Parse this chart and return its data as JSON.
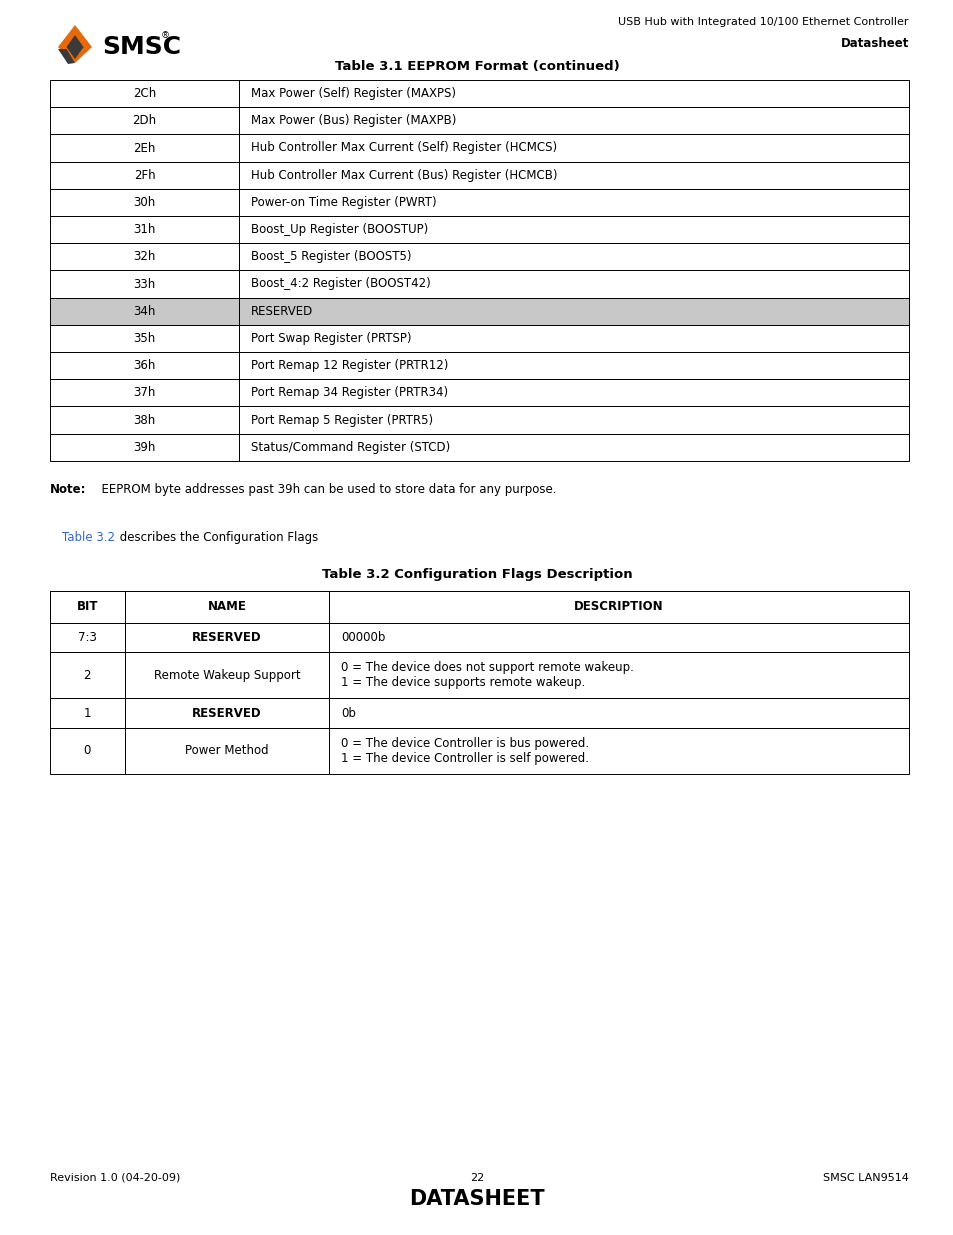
{
  "page_width": 9.54,
  "page_height": 12.35,
  "bg_color": "#ffffff",
  "header_subtitle": "USB Hub with Integrated 10/100 Ethernet Controller",
  "header_label": "Datasheet",
  "table1_title": "Table 3.1 EEPROM Format (continued)",
  "table1_rows": [
    [
      "2Ch",
      "Max Power (Self) Register (MAXPS)"
    ],
    [
      "2Dh",
      "Max Power (Bus) Register (MAXPB)"
    ],
    [
      "2Eh",
      "Hub Controller Max Current (Self) Register (HCMCS)"
    ],
    [
      "2Fh",
      "Hub Controller Max Current (Bus) Register (HCMCB)"
    ],
    [
      "30h",
      "Power-on Time Register (PWRT)"
    ],
    [
      "31h",
      "Boost_Up Register (BOOSTUP)"
    ],
    [
      "32h",
      "Boost_5 Register (BOOST5)"
    ],
    [
      "33h",
      "Boost_4:2 Register (BOOST42)"
    ],
    [
      "34h",
      "RESERVED"
    ],
    [
      "35h",
      "Port Swap Register (PRTSP)"
    ],
    [
      "36h",
      "Port Remap 12 Register (PRTR12)"
    ],
    [
      "37h",
      "Port Remap 34 Register (PRTR34)"
    ],
    [
      "38h",
      "Port Remap 5 Register (PRTR5)"
    ],
    [
      "39h",
      "Status/Command Register (STCD)"
    ]
  ],
  "reserved_row_index": 8,
  "reserved_bg": "#c8c8c8",
  "note_bold": "Note:",
  "note_rest": "  EEPROM byte addresses past 39h can be used to store data for any purpose.",
  "link_text": "Table 3.2",
  "link_rest": " describes the Configuration Flags",
  "link_color": "#3366cc",
  "table2_title": "Table 3.2 Configuration Flags Description",
  "table2_headers": [
    "BIT",
    "NAME",
    "DESCRIPTION"
  ],
  "table2_rows": [
    [
      "7:3",
      "RESERVED",
      "00000b"
    ],
    [
      "2",
      "Remote Wakeup Support",
      "0 = The device does not support remote wakeup.\n1 = The device supports remote wakeup."
    ],
    [
      "1",
      "RESERVED",
      "0b"
    ],
    [
      "0",
      "Power Method",
      "0 = The device Controller is bus powered.\n1 = The device Controller is self powered."
    ]
  ],
  "table2_bold_name_rows": [
    0,
    2
  ],
  "footer_left": "Revision 1.0 (04-20-09)",
  "footer_center_num": "22",
  "footer_center_big": "DATASHEET",
  "footer_right": "SMSC LAN9514"
}
